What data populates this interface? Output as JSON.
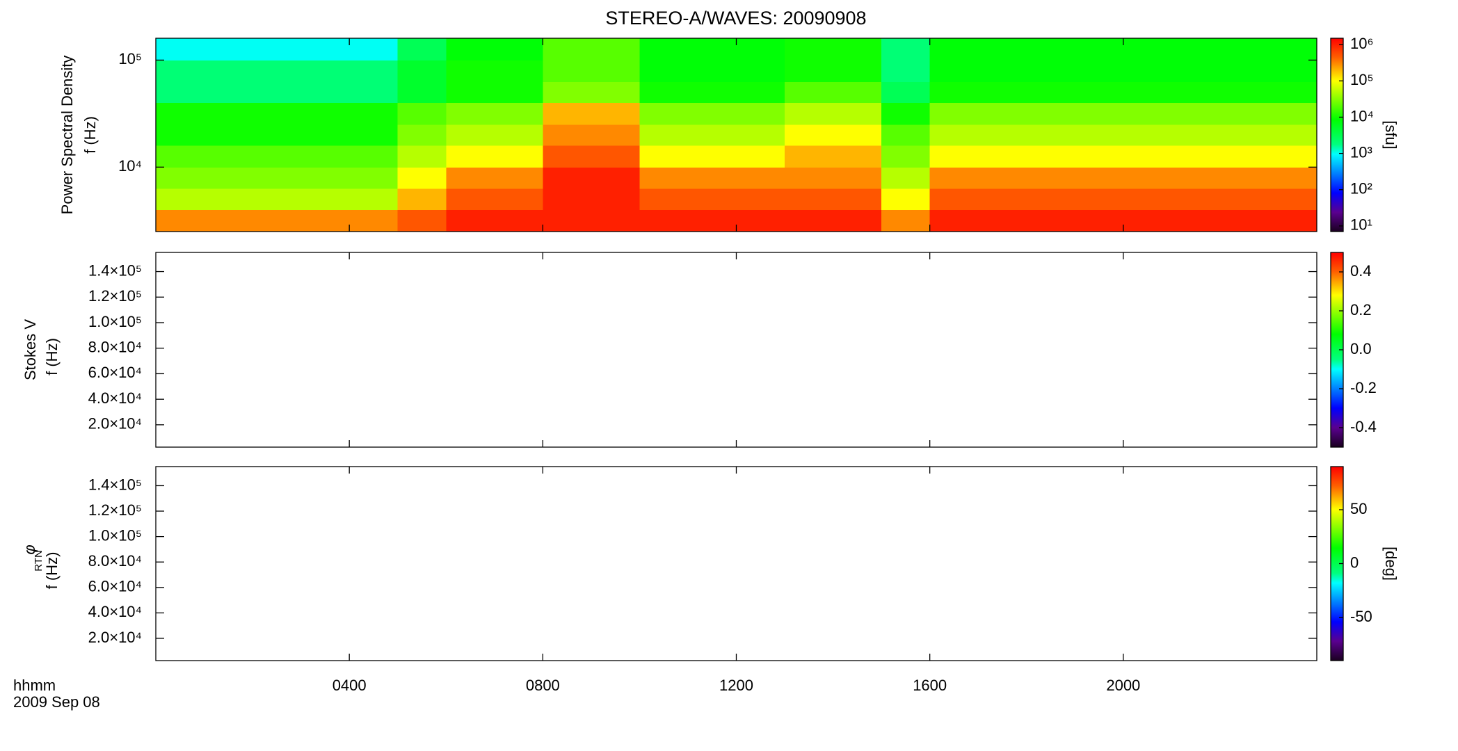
{
  "chart_data": [
    {
      "type": "heatmap",
      "title": "STEREO-A/WAVES: 20090908",
      "ylabel": "Power Spectral Density",
      "yunit": "f (Hz)",
      "ylog": true,
      "ylim": [
        2500,
        160000
      ],
      "yticks": [
        {
          "value": 10000,
          "label": "10⁴"
        },
        {
          "value": 100000,
          "label": "10⁵"
        }
      ],
      "zlog": true,
      "zlim": [
        7,
        1500000
      ],
      "colormap": "rainbow",
      "zticks": [
        {
          "value": 10,
          "label": "10¹"
        },
        {
          "value": 100,
          "label": "10²"
        },
        {
          "value": 1000,
          "label": "10³"
        },
        {
          "value": 10000,
          "label": "10⁴"
        },
        {
          "value": 100000,
          "label": "10⁵"
        },
        {
          "value": 1000000,
          "label": "10⁶"
        }
      ],
      "zlabel": "[sfu]",
      "x_edges": [
        0,
        1,
        2,
        3,
        4,
        5,
        6,
        7,
        8,
        9,
        10,
        11,
        12,
        13,
        14,
        15,
        16,
        17,
        18,
        19,
        20,
        21,
        22,
        23,
        24
      ],
      "y_edges": [
        2500,
        4000,
        6300,
        10000,
        16000,
        25000,
        40000,
        63000,
        100000,
        160000
      ],
      "z": [
        [
          300000,
          50000,
          30000,
          20000,
          10000,
          10000,
          2000,
          2000,
          1000
        ],
        [
          300000,
          50000,
          30000,
          20000,
          10000,
          10000,
          2000,
          2000,
          1000
        ],
        [
          300000,
          50000,
          30000,
          20000,
          10000,
          10000,
          2000,
          2000,
          1000
        ],
        [
          300000,
          50000,
          30000,
          20000,
          10000,
          10000,
          2000,
          2000,
          1000
        ],
        [
          300000,
          50000,
          30000,
          20000,
          10000,
          10000,
          2000,
          2000,
          1000
        ],
        [
          500000,
          200000,
          100000,
          50000,
          30000,
          20000,
          5000,
          5000,
          3000
        ],
        [
          1000000,
          500000,
          300000,
          100000,
          50000,
          30000,
          10000,
          10000,
          8000
        ],
        [
          1000000,
          500000,
          300000,
          100000,
          50000,
          30000,
          10000,
          10000,
          8000
        ],
        [
          1000000,
          1000000,
          1000000,
          500000,
          300000,
          200000,
          30000,
          20000,
          20000
        ],
        [
          1000000,
          1000000,
          1000000,
          500000,
          300000,
          200000,
          30000,
          20000,
          20000
        ],
        [
          1000000,
          500000,
          300000,
          100000,
          50000,
          30000,
          10000,
          8000,
          8000
        ],
        [
          1000000,
          500000,
          300000,
          100000,
          50000,
          30000,
          10000,
          8000,
          8000
        ],
        [
          1000000,
          500000,
          300000,
          100000,
          50000,
          30000,
          10000,
          8000,
          8000
        ],
        [
          1000000,
          500000,
          300000,
          200000,
          100000,
          50000,
          20000,
          10000,
          10000
        ],
        [
          1000000,
          500000,
          300000,
          200000,
          100000,
          50000,
          20000,
          10000,
          10000
        ],
        [
          300000,
          100000,
          50000,
          30000,
          20000,
          10000,
          3000,
          2000,
          2000
        ],
        [
          1000000,
          500000,
          300000,
          100000,
          50000,
          30000,
          10000,
          8000,
          8000
        ],
        [
          1000000,
          500000,
          300000,
          100000,
          50000,
          30000,
          10000,
          8000,
          8000
        ],
        [
          1000000,
          500000,
          300000,
          100000,
          50000,
          30000,
          10000,
          8000,
          8000
        ],
        [
          1000000,
          500000,
          300000,
          100000,
          50000,
          30000,
          10000,
          8000,
          8000
        ],
        [
          1000000,
          500000,
          300000,
          100000,
          50000,
          30000,
          10000,
          8000,
          8000
        ],
        [
          1000000,
          500000,
          300000,
          100000,
          50000,
          30000,
          10000,
          8000,
          8000
        ],
        [
          1000000,
          500000,
          300000,
          100000,
          50000,
          30000,
          10000,
          8000,
          8000
        ],
        [
          1000000,
          500000,
          300000,
          100000,
          50000,
          30000,
          10000,
          8000,
          8000
        ]
      ]
    },
    {
      "type": "heatmap",
      "ylabel": "Stokes V",
      "yunit": "f (Hz)",
      "ylog": false,
      "ylim": [
        2500,
        155000
      ],
      "yticks": [
        {
          "value": 20000,
          "label": "2.0×10⁴"
        },
        {
          "value": 40000,
          "label": "4.0×10⁴"
        },
        {
          "value": 60000,
          "label": "6.0×10⁴"
        },
        {
          "value": 80000,
          "label": "8.0×10⁴"
        },
        {
          "value": 100000,
          "label": "1.0×10⁵"
        },
        {
          "value": 120000,
          "label": "1.2×10⁵"
        },
        {
          "value": 140000,
          "label": "1.4×10⁵"
        }
      ],
      "zlog": false,
      "zlim": [
        -0.5,
        0.5
      ],
      "colormap": "rainbow",
      "zticks": [
        -0.4,
        -0.2,
        {
          "value": 0,
          "label": "0.0"
        },
        0.2,
        0.4
      ]
    },
    {
      "type": "heatmap",
      "ylabel": "φ",
      "ylabel_sub": "RTN",
      "yunit": "f (Hz)",
      "ylog": false,
      "ylim": [
        2500,
        155000
      ],
      "yticks": [
        {
          "value": 20000,
          "label": "2.0×10⁴"
        },
        {
          "value": 40000,
          "label": "4.0×10⁴"
        },
        {
          "value": 60000,
          "label": "6.0×10⁴"
        },
        {
          "value": 80000,
          "label": "8.0×10⁴"
        },
        {
          "value": 100000,
          "label": "1.0×10⁵"
        },
        {
          "value": 120000,
          "label": "1.2×10⁵"
        },
        {
          "value": 140000,
          "label": "1.4×10⁵"
        }
      ],
      "zlog": false,
      "zlim": [
        -90,
        90
      ],
      "colormap": "rainbow",
      "zticks": [
        -50,
        0,
        50
      ],
      "zlabel": "[deg]",
      "xlim": [
        0,
        24
      ],
      "xticks": [
        {
          "value": 4,
          "label": "0400"
        },
        {
          "value": 8,
          "label": "0800"
        },
        {
          "value": 12,
          "label": "1200"
        },
        {
          "value": 16,
          "label": "1600"
        },
        {
          "value": 20,
          "label": "2000"
        }
      ],
      "xlabel": "hhmm",
      "date": "2009 Sep 08"
    }
  ]
}
